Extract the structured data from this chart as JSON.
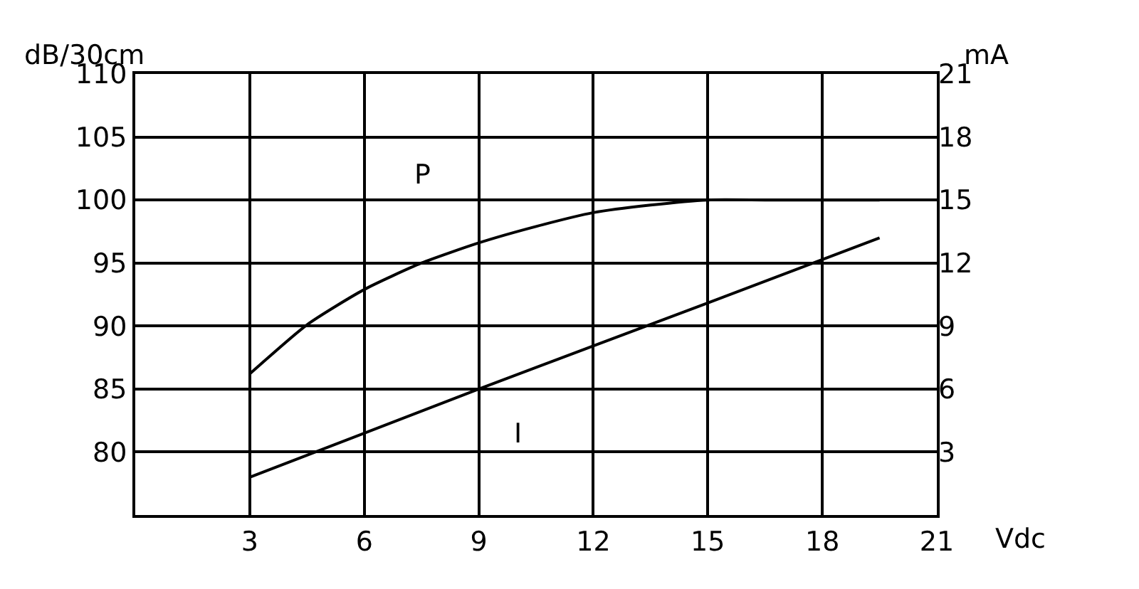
{
  "chart_data": {
    "type": "line",
    "xlabel": "Vdc",
    "ylabel": "dB/30cm",
    "y2label": "mA",
    "xlim": [
      0,
      21
    ],
    "xticks": [
      3,
      6,
      9,
      12,
      15,
      18,
      21
    ],
    "ylim": [
      75,
      110
    ],
    "yticks": [
      80,
      85,
      90,
      95,
      100,
      105,
      110
    ],
    "y2lim": [
      0,
      21
    ],
    "y2ticks": [
      3,
      6,
      9,
      12,
      15,
      18,
      21
    ],
    "grid": true,
    "legend": false,
    "marker": "none",
    "line_style": "solid",
    "series": [
      {
        "name": "P",
        "color": "#000000",
        "x": [
          3,
          4.5,
          6,
          7.5,
          9,
          10.5,
          12,
          13.5,
          15,
          16.5,
          18,
          19.5
        ],
        "values": [
          86.2,
          90.1,
          92.9,
          95.0,
          96.6,
          97.9,
          99.0,
          99.6,
          100,
          100,
          100,
          100
        ]
      },
      {
        "name": "I",
        "color": "#000000",
        "axis": "y2",
        "x": [
          3,
          9,
          15,
          19.5
        ],
        "values": [
          1.8,
          6.0,
          10.1,
          13.2
        ]
      }
    ]
  }
}
